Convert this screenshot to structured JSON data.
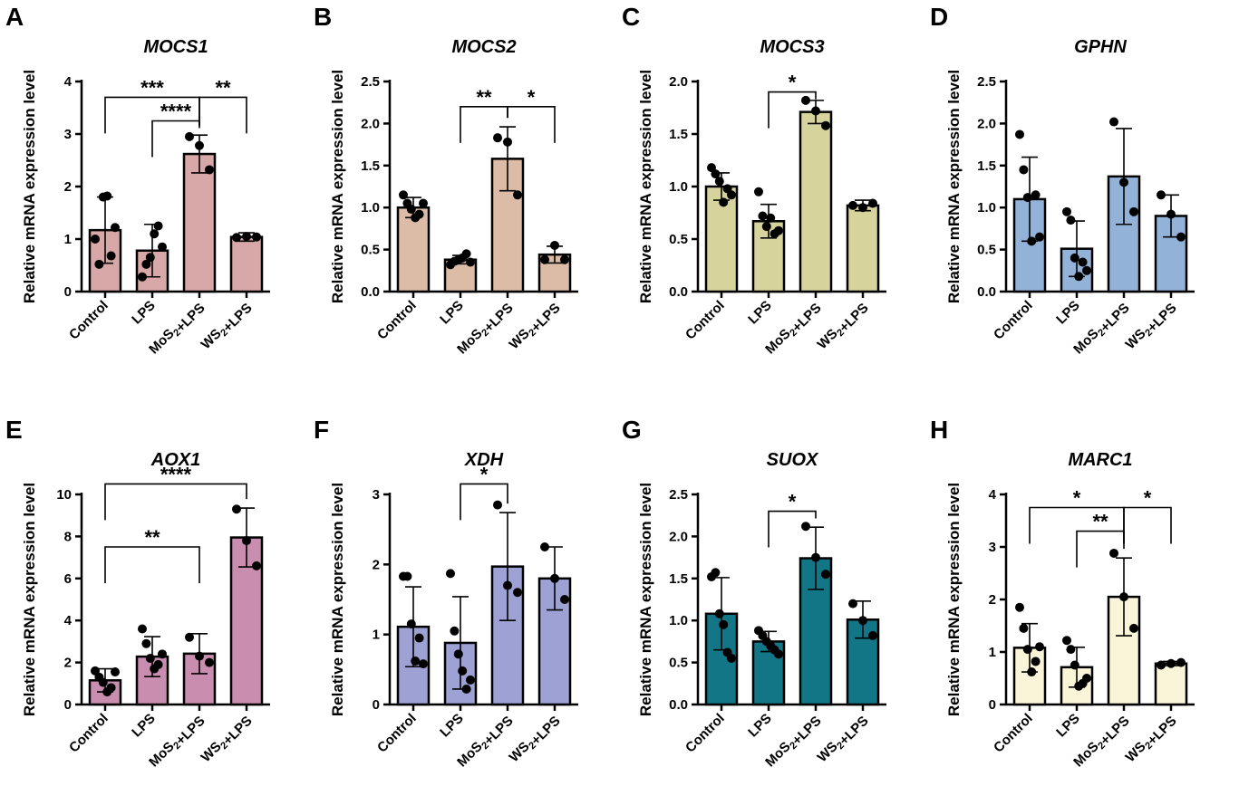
{
  "figure": {
    "chart_data": [
      {
        "type": "bar",
        "panel": "A",
        "title": "MOCS1",
        "ylabel": "Relative mRNA expression level",
        "categories": [
          "Control",
          "LPS",
          "MoS2+LPS",
          "WS2+LPS"
        ],
        "ylim": [
          0,
          4
        ],
        "yticks": [
          0,
          1,
          2,
          3,
          4
        ],
        "ytick_labels": [
          "0",
          "1",
          "2",
          "3",
          "4"
        ],
        "color": "#d8a7a7",
        "values": [
          1.17,
          0.78,
          2.62,
          1.04
        ],
        "sd": [
          0.63,
          0.5,
          0.36,
          0.08
        ],
        "points": [
          [
            1.0,
            0.52,
            1.8,
            1.82,
            0.68,
            1.22
          ],
          [
            0.28,
            0.52,
            0.65,
            1.1,
            1.25,
            0.85
          ],
          [
            2.95,
            2.78,
            2.32
          ],
          [
            1.03,
            1.05,
            1.04
          ]
        ],
        "significance": [
          {
            "from": 0,
            "to": 2,
            "label": "***",
            "y": 3.7
          },
          {
            "from": 1,
            "to": 2,
            "label": "****",
            "y": 3.25
          },
          {
            "from": 2,
            "to": 3,
            "label": "**",
            "y": 3.7
          }
        ]
      },
      {
        "type": "bar",
        "panel": "B",
        "title": "MOCS2",
        "ylabel": "Relative mRNA expression level",
        "categories": [
          "Control",
          "LPS",
          "MoS2+LPS",
          "WS2+LPS"
        ],
        "ylim": [
          0,
          2.5
        ],
        "yticks": [
          0,
          0.5,
          1.0,
          1.5,
          2.0,
          2.5
        ],
        "ytick_labels": [
          "0.0",
          "0.5",
          "1.0",
          "1.5",
          "2.0",
          "2.5"
        ],
        "color": "#dcbca6",
        "values": [
          1.0,
          0.38,
          1.58,
          0.44
        ],
        "sd": [
          0.12,
          0.05,
          0.38,
          0.1
        ],
        "points": [
          [
            1.15,
            1.05,
            0.98,
            0.88,
            0.92,
            1.05
          ],
          [
            0.32,
            0.36,
            0.38,
            0.4,
            0.45,
            0.35
          ],
          [
            1.83,
            1.78,
            1.15
          ],
          [
            0.38,
            0.55,
            0.38
          ]
        ],
        "significance": [
          {
            "from": 1,
            "to": 2,
            "label": "**",
            "y": 2.2
          },
          {
            "from": 2,
            "to": 3,
            "label": "*",
            "y": 2.2
          }
        ]
      },
      {
        "type": "bar",
        "panel": "C",
        "title": "MOCS3",
        "ylabel": "Relative mRNA expression level",
        "categories": [
          "Control",
          "LPS",
          "MoS2+LPS",
          "WS2+LPS"
        ],
        "ylim": [
          0,
          2.0
        ],
        "yticks": [
          0,
          0.5,
          1.0,
          1.5,
          2.0
        ],
        "ytick_labels": [
          "0.0",
          "0.5",
          "1.0",
          "1.5",
          "2.0"
        ],
        "color": "#d6d49c",
        "values": [
          1.0,
          0.67,
          1.71,
          0.82
        ],
        "sd": [
          0.13,
          0.16,
          0.11,
          0.05
        ],
        "points": [
          [
            1.18,
            1.12,
            1.05,
            0.85,
            0.98,
            0.92
          ],
          [
            0.95,
            0.72,
            0.62,
            0.7,
            0.55,
            0.58
          ],
          [
            1.82,
            1.72,
            1.58
          ],
          [
            0.82,
            0.8,
            0.84
          ]
        ],
        "significance": [
          {
            "from": 1,
            "to": 2,
            "label": "*",
            "y": 1.9
          }
        ]
      },
      {
        "type": "bar",
        "panel": "D",
        "title": "GPHN",
        "ylabel": "Relative mRNA expression level",
        "categories": [
          "Control",
          "LPS",
          "MoS2+LPS",
          "WS2+LPS"
        ],
        "ylim": [
          0,
          2.5
        ],
        "yticks": [
          0,
          0.5,
          1.0,
          1.5,
          2.0,
          2.5
        ],
        "ytick_labels": [
          "0.0",
          "0.5",
          "1.0",
          "1.5",
          "2.0",
          "2.5"
        ],
        "color": "#93b2d8",
        "values": [
          1.1,
          0.51,
          1.37,
          0.9
        ],
        "sd": [
          0.5,
          0.33,
          0.57,
          0.25
        ],
        "points": [
          [
            1.87,
            1.45,
            1.12,
            0.6,
            1.15,
            0.65
          ],
          [
            0.95,
            0.85,
            0.4,
            0.18,
            0.35,
            0.25
          ],
          [
            2.02,
            1.3,
            0.95
          ],
          [
            1.15,
            0.92,
            0.65
          ]
        ],
        "significance": []
      },
      {
        "type": "bar",
        "panel": "E",
        "title": "AOX1",
        "ylabel": "Relative mRNA expression level",
        "categories": [
          "Control",
          "LPS",
          "MoS2+LPS",
          "WS2+LPS"
        ],
        "ylim": [
          0,
          10
        ],
        "yticks": [
          0,
          2,
          4,
          6,
          8,
          10
        ],
        "ytick_labels": [
          "0",
          "2",
          "4",
          "6",
          "8",
          "10"
        ],
        "color": "#c98db0",
        "values": [
          1.15,
          2.28,
          2.42,
          7.95
        ],
        "sd": [
          0.55,
          0.95,
          0.95,
          1.4
        ],
        "points": [
          [
            1.6,
            1.3,
            1.05,
            0.6,
            0.8,
            1.55
          ],
          [
            3.6,
            2.9,
            2.2,
            1.7,
            1.9,
            2.4
          ],
          [
            3.2,
            2.3,
            2.0
          ],
          [
            9.3,
            7.8,
            6.6
          ]
        ],
        "significance": [
          {
            "from": 0,
            "to": 3,
            "label": "****",
            "y": 10.5
          },
          {
            "from": 0,
            "to": 2,
            "label": "**",
            "y": 7.5
          }
        ]
      },
      {
        "type": "bar",
        "panel": "F",
        "title": "XDH",
        "ylabel": "Relative mRNA expression level",
        "categories": [
          "Control",
          "LPS",
          "MoS2+LPS",
          "WS2+LPS"
        ],
        "ylim": [
          0,
          3
        ],
        "yticks": [
          0,
          1,
          2,
          3
        ],
        "ytick_labels": [
          "0",
          "1",
          "2",
          "3"
        ],
        "color": "#9da1d4",
        "values": [
          1.11,
          0.88,
          1.97,
          1.8
        ],
        "sd": [
          0.57,
          0.66,
          0.77,
          0.45
        ],
        "points": [
          [
            1.83,
            1.83,
            1.15,
            0.62,
            0.95,
            0.58
          ],
          [
            1.87,
            1.05,
            0.72,
            0.48,
            0.22,
            0.35
          ],
          [
            2.85,
            1.7,
            1.6
          ],
          [
            2.25,
            1.8,
            1.5
          ]
        ],
        "significance": [
          {
            "from": 1,
            "to": 2,
            "label": "*",
            "y": 3.15
          }
        ]
      },
      {
        "type": "bar",
        "panel": "G",
        "title": "SUOX",
        "ylabel": "Relative mRNA expression level",
        "categories": [
          "Control",
          "LPS",
          "MoS2+LPS",
          "WS2+LPS"
        ],
        "ylim": [
          0,
          2.5
        ],
        "yticks": [
          0,
          0.5,
          1.0,
          1.5,
          2.0,
          2.5
        ],
        "ytick_labels": [
          "0.0",
          "0.5",
          "1.0",
          "1.5",
          "2.0",
          "2.5"
        ],
        "color": "#127686",
        "values": [
          1.08,
          0.75,
          1.74,
          1.01
        ],
        "sd": [
          0.43,
          0.12,
          0.37,
          0.22
        ],
        "points": [
          [
            1.52,
            1.57,
            1.08,
            0.95,
            0.62,
            0.55
          ],
          [
            0.88,
            0.82,
            0.75,
            0.7,
            0.65,
            0.6
          ],
          [
            2.12,
            1.75,
            1.55
          ],
          [
            1.2,
            1.0,
            0.82
          ]
        ],
        "significance": [
          {
            "from": 1,
            "to": 2,
            "label": "*",
            "y": 2.3
          }
        ]
      },
      {
        "type": "bar",
        "panel": "H",
        "title": "MARC1",
        "ylabel": "Relative mRNA expression level",
        "categories": [
          "Control",
          "LPS",
          "MoS2+LPS",
          "WS2+LPS"
        ],
        "ylim": [
          0,
          4
        ],
        "yticks": [
          0,
          1,
          2,
          3,
          4
        ],
        "ytick_labels": [
          "0",
          "1",
          "2",
          "3",
          "4"
        ],
        "color": "#faf5d8",
        "values": [
          1.08,
          0.71,
          2.05,
          0.78
        ],
        "sd": [
          0.46,
          0.38,
          0.74,
          0.04
        ],
        "points": [
          [
            1.85,
            1.45,
            1.05,
            0.62,
            0.82,
            1.1
          ],
          [
            1.22,
            1.05,
            0.75,
            0.35,
            0.4,
            0.5
          ],
          [
            2.88,
            2.05,
            1.45
          ],
          [
            0.75,
            0.78,
            0.8
          ]
        ],
        "significance": [
          {
            "from": 0,
            "to": 2,
            "label": "*",
            "y": 3.75
          },
          {
            "from": 1,
            "to": 2,
            "label": "**",
            "y": 3.3
          },
          {
            "from": 2,
            "to": 3,
            "label": "*",
            "y": 3.75
          }
        ]
      }
    ]
  }
}
